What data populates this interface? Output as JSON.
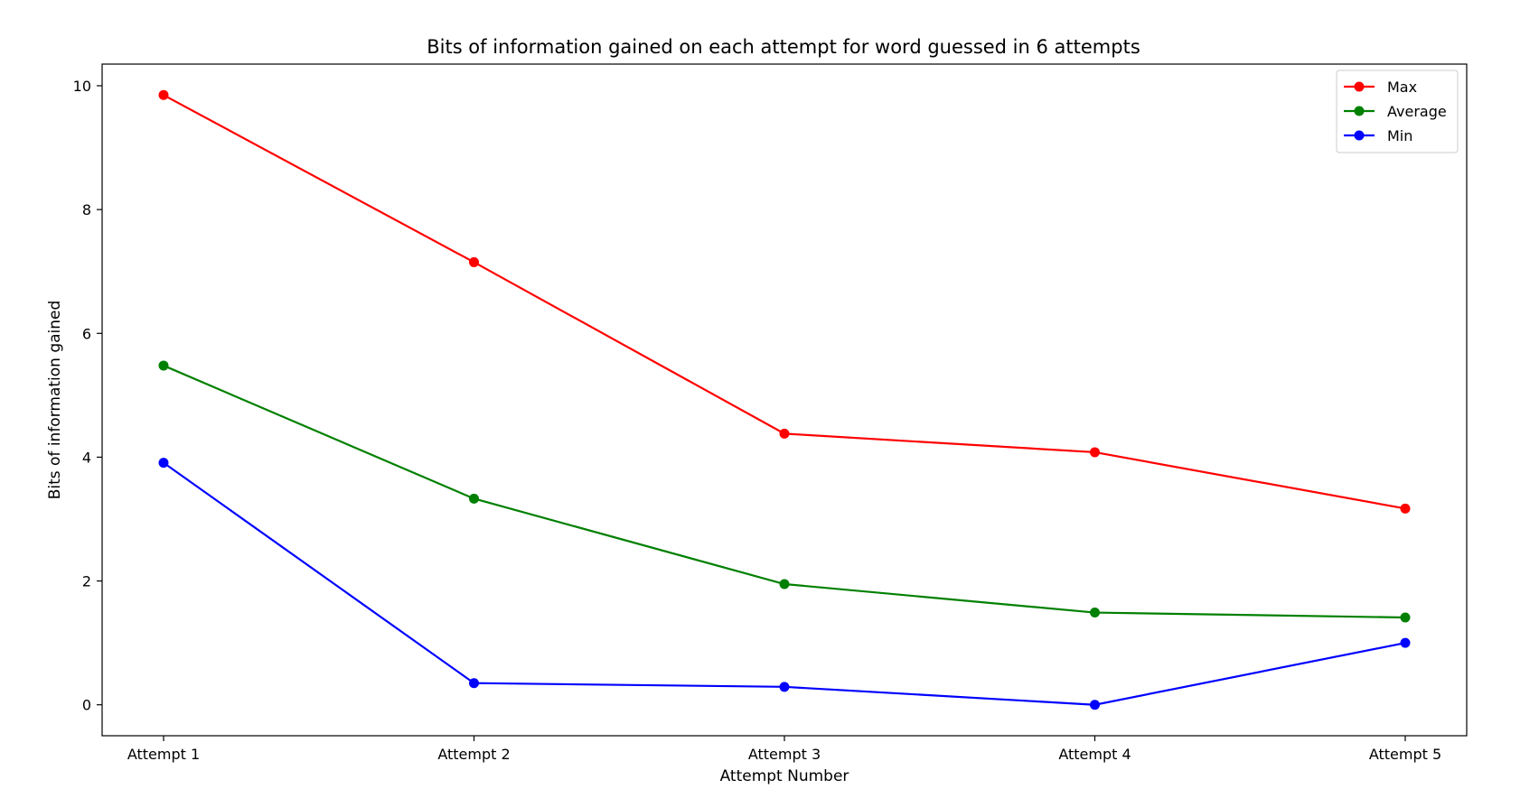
{
  "chart_data": {
    "type": "line",
    "title": "Bits of information gained on each attempt for word guessed in 6 attempts",
    "xlabel": "Attempt Number",
    "ylabel": "Bits of information gained",
    "categories": [
      "Attempt 1",
      "Attempt 2",
      "Attempt 3",
      "Attempt 4",
      "Attempt 5"
    ],
    "ylim": [
      -0.5,
      10.35
    ],
    "yticks": [
      0,
      2,
      4,
      6,
      8,
      10
    ],
    "ytick_labels": [
      "0",
      "2",
      "4",
      "6",
      "8",
      "10"
    ],
    "grid": false,
    "legend": {
      "position": "top-right"
    },
    "series": [
      {
        "name": "Max",
        "color": "#ff0000",
        "marker": "circle",
        "values": [
          9.85,
          7.15,
          4.38,
          4.08,
          3.17
        ]
      },
      {
        "name": "Average",
        "color": "#008000",
        "marker": "circle",
        "values": [
          5.48,
          3.33,
          1.95,
          1.49,
          1.41
        ]
      },
      {
        "name": "Min",
        "color": "#0000ff",
        "marker": "circle",
        "values": [
          3.91,
          0.35,
          0.29,
          0.0,
          1.0
        ]
      }
    ]
  }
}
